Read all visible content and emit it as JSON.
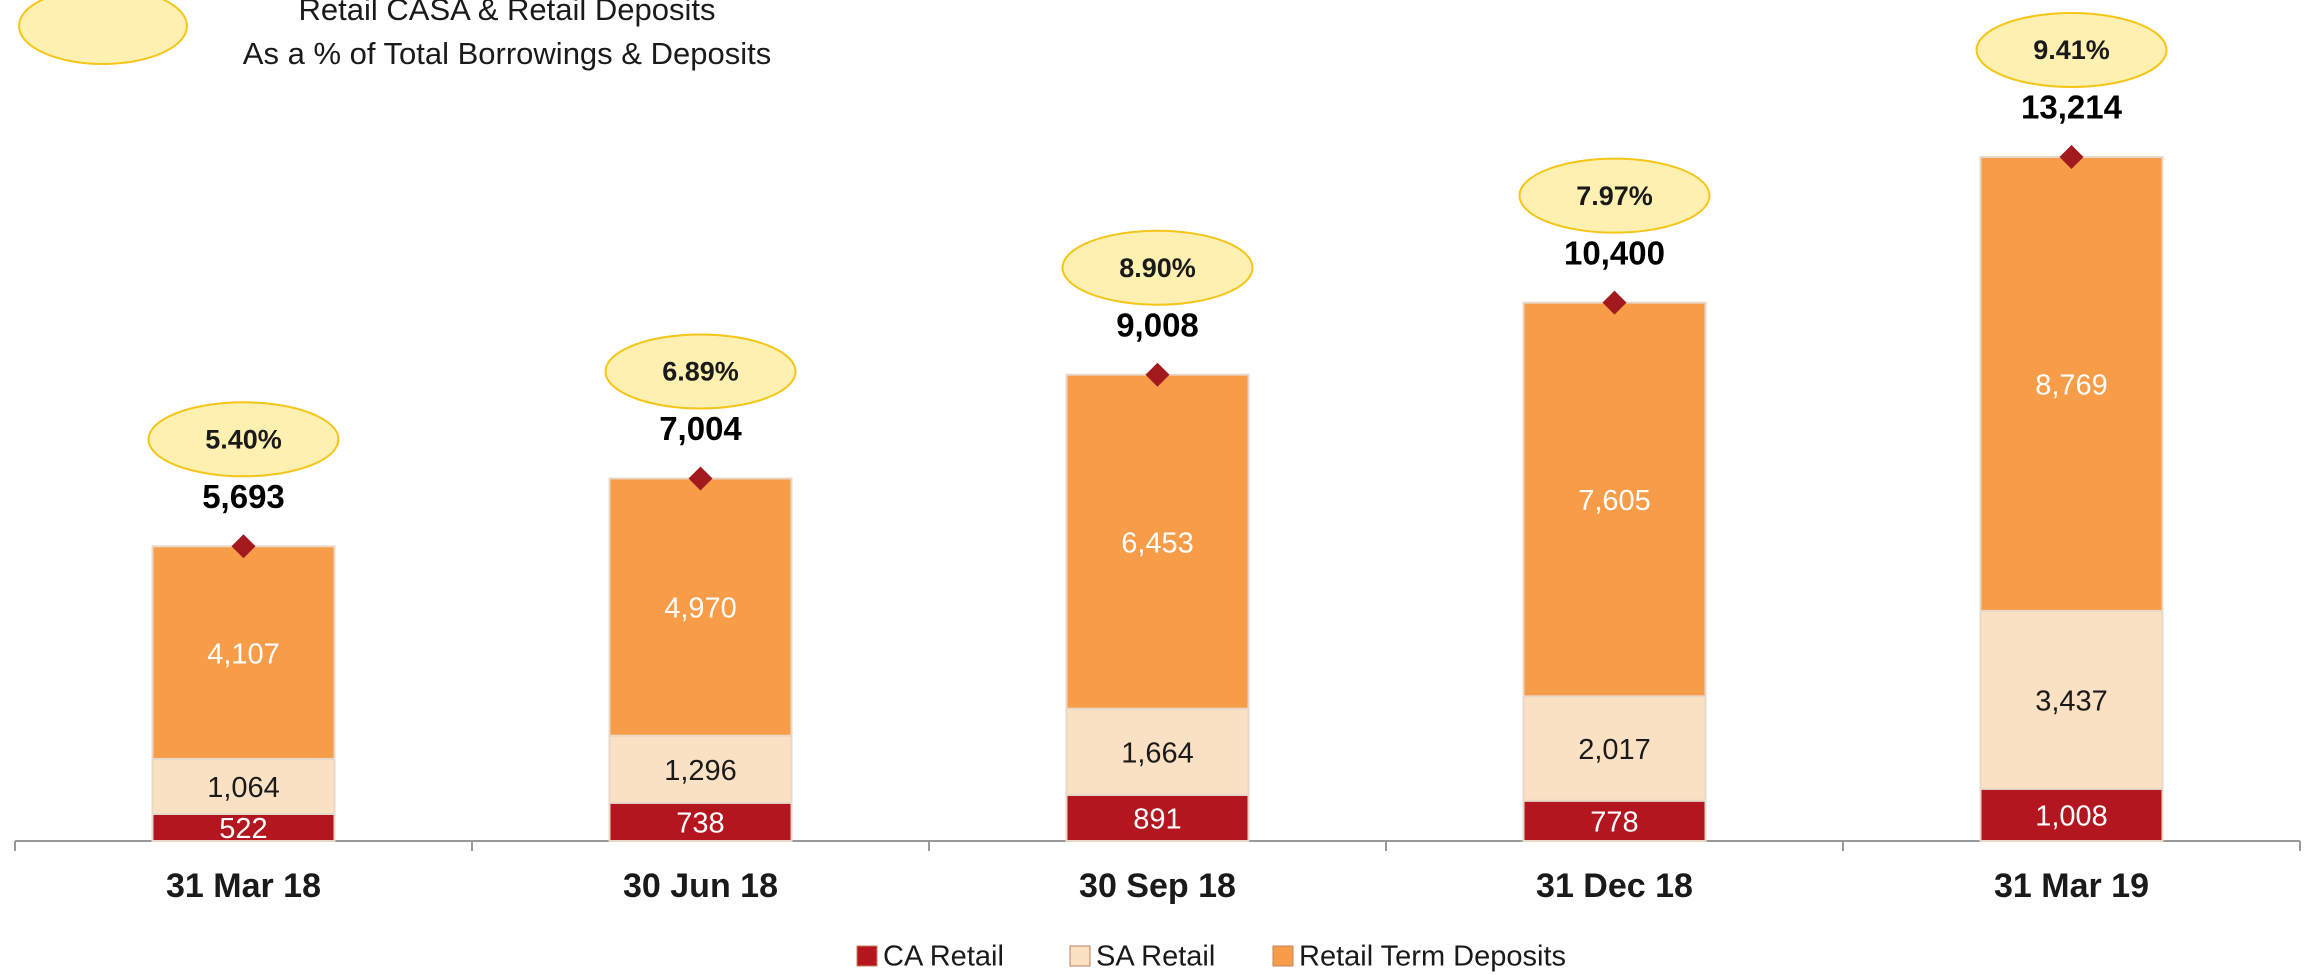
{
  "chart_data": {
    "type": "stacked_bar",
    "percent_legend": [
      "Retail CASA & Retail Deposits",
      "As a % of Total Borrowings & Deposits"
    ],
    "categories": [
      "31 Mar 18",
      "30 Jun 18",
      "30 Sep 18",
      "31 Dec 18",
      "31 Mar 19"
    ],
    "series": [
      {
        "name": "CA Retail",
        "color": "#b3161e",
        "label_color": "#ffffff",
        "values": [
          522,
          738,
          891,
          778,
          1008
        ]
      },
      {
        "name": "SA Retail",
        "color": "#fbe1c3",
        "label_color": "#1a1a1a",
        "values": [
          1064,
          1296,
          1664,
          2017,
          3437
        ]
      },
      {
        "name": "Retail Term Deposits",
        "color": "#f79c48",
        "label_color": "#ffffff",
        "values": [
          4107,
          4970,
          6453,
          7605,
          8769
        ]
      }
    ],
    "totals": [
      5693,
      7004,
      9008,
      10400,
      13214
    ],
    "total_labels": [
      "5,693",
      "7,004",
      "9,008",
      "10,400",
      "13,214"
    ],
    "value_labels": [
      [
        "522",
        "738",
        "891",
        "778",
        "1,008"
      ],
      [
        "1,064",
        "1,296",
        "1,664",
        "2,017",
        "3,437"
      ],
      [
        "4,107",
        "4,970",
        "6,453",
        "7,605",
        "8,769"
      ]
    ],
    "percentages": [
      5.4,
      6.89,
      8.9,
      7.97,
      9.41
    ],
    "percentage_labels": [
      "5.40%",
      "6.89%",
      "8.90%",
      "7.97%",
      "9.41%"
    ],
    "marker_color": "#a31a1e"
  }
}
